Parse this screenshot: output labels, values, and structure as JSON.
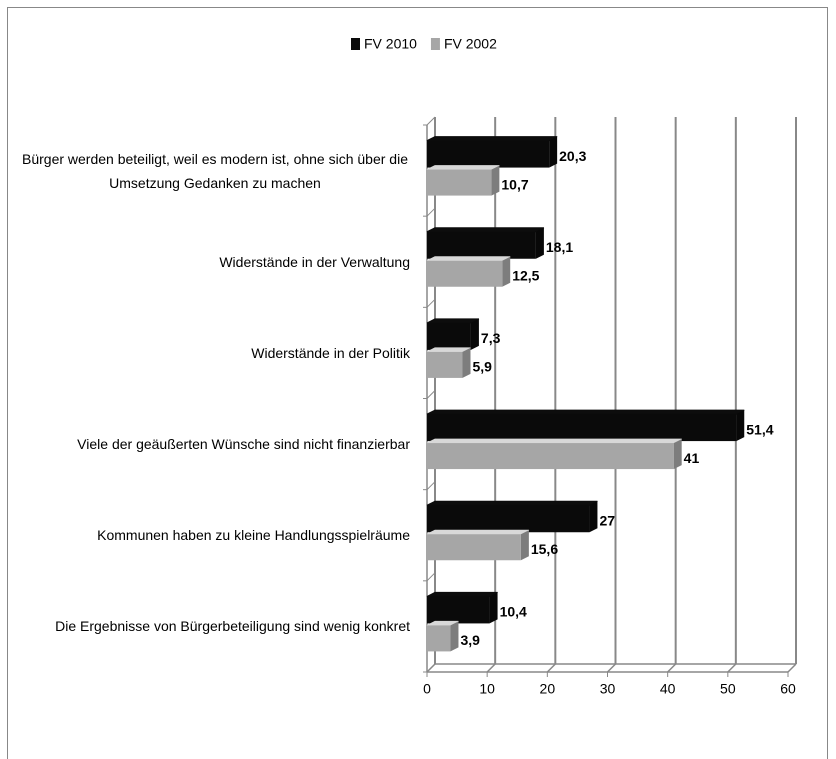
{
  "chart_data": {
    "type": "bar",
    "orientation": "horizontal",
    "categories": [
      "Bürger werden beteiligt, weil es modern ist, ohne sich über die Umsetzung Gedanken zu machen",
      "Widerstände in der Verwaltung",
      "Widerstände in der Politik",
      "Viele der geäußerten Wünsche sind nicht finanzierbar",
      "Kommunen haben zu kleine Handlungsspielräume",
      "Die Ergebnisse von Bürgerbeteiligung sind wenig konkret"
    ],
    "series": [
      {
        "name": "FV 2010",
        "color": "#0a0a0a",
        "values": [
          20.3,
          18.1,
          7.3,
          51.4,
          27,
          10.4
        ],
        "value_labels": [
          "20,3",
          "18,1",
          "7,3",
          "51,4",
          "27",
          "10,4"
        ]
      },
      {
        "name": "FV 2002",
        "color": "#a6a6a6",
        "values": [
          10.7,
          12.5,
          5.9,
          41,
          15.6,
          3.9
        ],
        "value_labels": [
          "10,7",
          "12,5",
          "5,9",
          "41",
          "15,6",
          "3,9"
        ]
      }
    ],
    "xlim": [
      0,
      60
    ],
    "xticks": [
      0,
      10,
      20,
      30,
      40,
      50,
      60
    ],
    "grid": true,
    "legend": "top"
  }
}
